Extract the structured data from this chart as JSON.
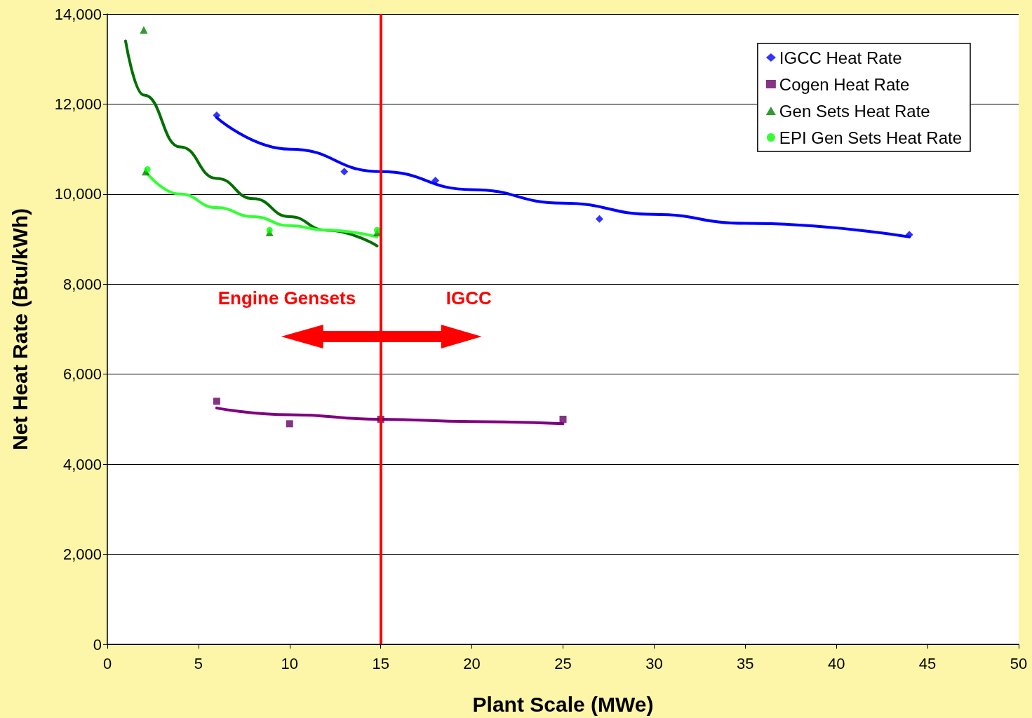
{
  "chart_data": {
    "type": "scatter",
    "xlabel": "Plant Scale (MWe)",
    "ylabel": "Net Heat Rate (Btu/kWh)",
    "xlim": [
      0,
      50
    ],
    "xticks": [
      0,
      5,
      10,
      15,
      20,
      25,
      30,
      35,
      40,
      45,
      50
    ],
    "ylim": [
      0,
      14000
    ],
    "yticks": [
      0,
      {
        "value": 2000,
        "label": "2,000"
      },
      {
        "value": 4000,
        "label": "4,000"
      },
      {
        "value": 6000,
        "label": "6,000"
      },
      {
        "value": 8000,
        "label": "8,000"
      },
      {
        "value": 10000,
        "label": "10,000"
      },
      {
        "value": 12000,
        "label": "12,000"
      },
      {
        "value": 14000,
        "label": "14,000"
      }
    ],
    "grid": "y",
    "legend": "top right",
    "series": [
      {
        "name": "IGCC Heat Rate",
        "marker": "diamond",
        "color": "#0000ff",
        "x": [
          6,
          13,
          18,
          27,
          44
        ],
        "values": [
          11750,
          10500,
          10300,
          9450,
          9100
        ]
      },
      {
        "name": "Cogen Heat Rate",
        "marker": "square",
        "color": "#660066",
        "x": [
          6,
          10,
          15,
          25
        ],
        "values": [
          5400,
          4900,
          5000,
          5000
        ]
      },
      {
        "name": "Gen Sets Heat Rate",
        "marker": "triangle",
        "color": "#008000",
        "x": [
          2,
          2.1,
          8.9,
          14.8
        ],
        "values": [
          13650,
          10500,
          9150,
          9150
        ]
      },
      {
        "name": "EPI Gen Sets Heat Rate",
        "marker": "circle",
        "color": "#00ff00",
        "x": [
          2.2,
          8.9,
          14.8
        ],
        "values": [
          10550,
          9200,
          9200
        ]
      },
      {
        "type": "line",
        "marker": "none",
        "color": "#0000ff",
        "x": [
          6,
          10,
          15,
          20,
          25,
          30,
          35,
          44
        ],
        "values": [
          11700,
          11000,
          10500,
          10100,
          9800,
          9550,
          9350,
          9050
        ]
      },
      {
        "type": "line",
        "marker": "none",
        "color": "#800080",
        "x": [
          6,
          10,
          15,
          20,
          25
        ],
        "values": [
          5250,
          5100,
          5000,
          4950,
          4900
        ]
      },
      {
        "type": "line",
        "marker": "none",
        "color": "#007000",
        "x": [
          1,
          2,
          4,
          6,
          8,
          10,
          12,
          14.8
        ],
        "values": [
          13400,
          12200,
          11050,
          10350,
          9900,
          9500,
          9200,
          8850
        ]
      },
      {
        "type": "line",
        "marker": "none",
        "color": "#33ff33",
        "x": [
          2.1,
          4,
          6,
          8,
          10,
          12,
          14.8
        ],
        "values": [
          10500,
          10000,
          9700,
          9500,
          9300,
          9200,
          9050
        ]
      }
    ],
    "ref_lines": [
      {
        "axis": "x",
        "value": 15,
        "color": "#ff0000"
      }
    ],
    "annotations": [
      "Engine Gensets",
      "IGCC"
    ]
  }
}
